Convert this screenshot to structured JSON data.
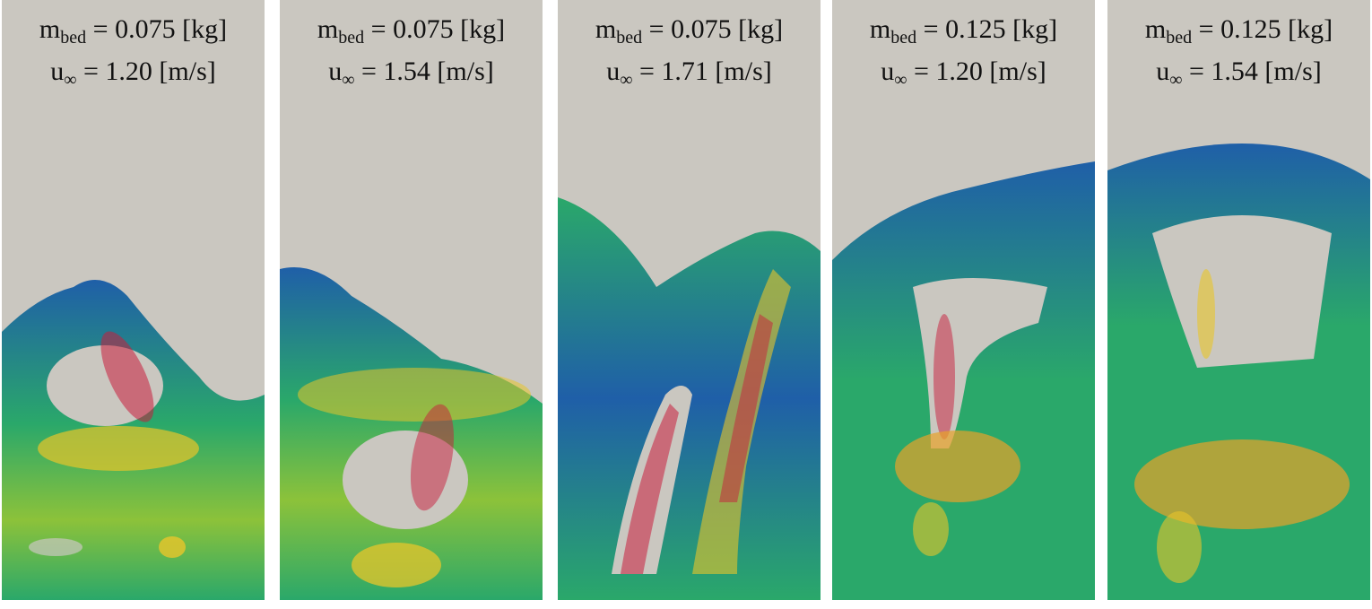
{
  "panels": [
    {
      "m_symbol": "m",
      "m_sub": "bed",
      "m_value": "= 0.075 [kg]",
      "u_symbol": "u",
      "u_sub": "∞",
      "u_value": "= 1.20 [m/s]"
    },
    {
      "m_symbol": "m",
      "m_sub": "bed",
      "m_value": "= 0.075 [kg]",
      "u_symbol": "u",
      "u_sub": "∞",
      "u_value": "= 1.54 [m/s]"
    },
    {
      "m_symbol": "m",
      "m_sub": "bed",
      "m_value": "= 0.075 [kg]",
      "u_symbol": "u",
      "u_sub": "∞",
      "u_value": "= 1.71 [m/s]"
    },
    {
      "m_symbol": "m",
      "m_sub": "bed",
      "m_value": "= 0.125 [kg]",
      "u_symbol": "u",
      "u_sub": "∞",
      "u_value": "= 1.20 [m/s]"
    },
    {
      "m_symbol": "m",
      "m_sub": "bed",
      "m_value": "= 0.125 [kg]",
      "u_symbol": "u",
      "u_sub": "∞",
      "u_value": "= 1.54 [m/s]"
    }
  ],
  "colors": {
    "background": "#cac7c0",
    "slow": "#1f5fa8",
    "mid": "#2aa86a",
    "fast": "#e8c52a",
    "fastest": "#c81e3c"
  }
}
